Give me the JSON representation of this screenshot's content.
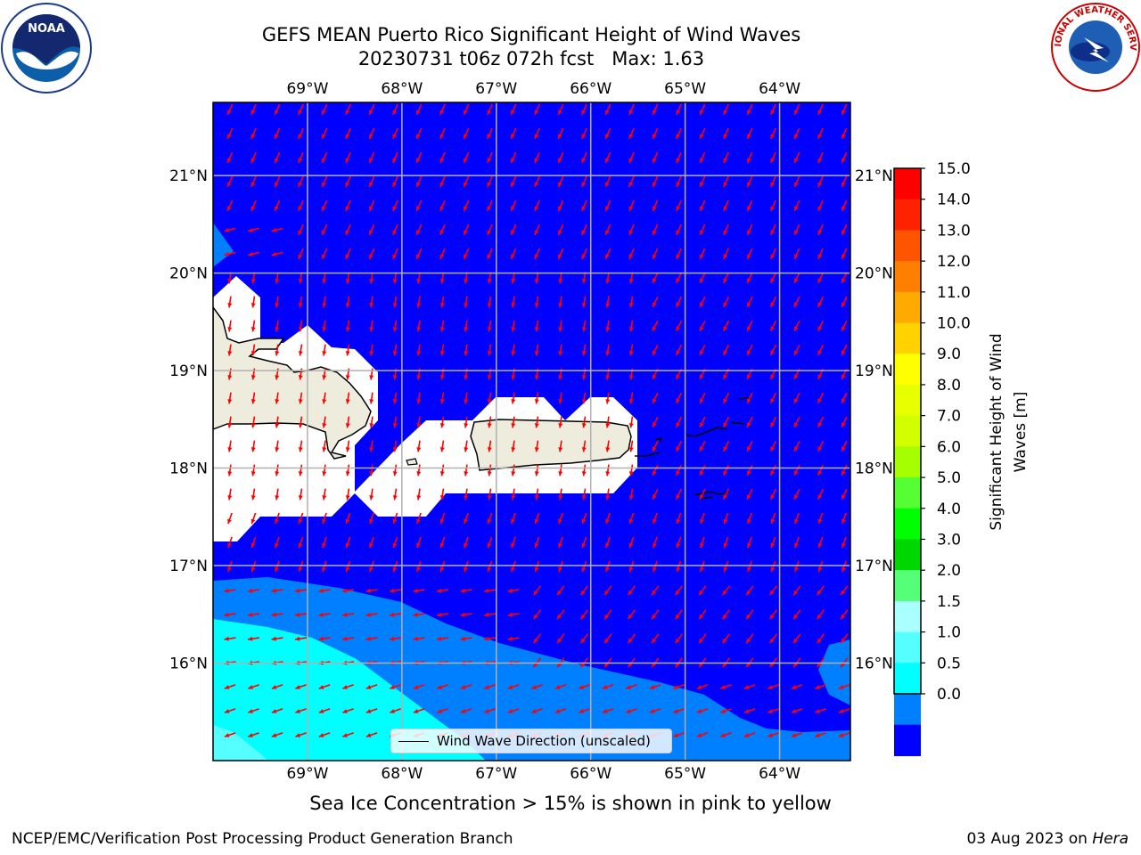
{
  "title": {
    "line1": "GEFS MEAN Puerto Rico Significant Height of Wind Waves",
    "line2": "20230731 t06z 072h fcst   Max: 1.63"
  },
  "logos": {
    "left": {
      "icon": "noaa-logo",
      "text": "NOAA"
    },
    "right": {
      "icon": "national-weather-service-logo",
      "text": "NATIONAL WEATHER SERVICE"
    }
  },
  "map": {
    "extent": {
      "lon_min": -70.0,
      "lon_max": -63.25,
      "lat_min": 15.0,
      "lat_max": 21.75
    },
    "lon_ticks": [
      "69°W",
      "68°W",
      "67°W",
      "66°W",
      "65°W",
      "64°W"
    ],
    "lon_values": [
      -69,
      -68,
      -67,
      -66,
      -65,
      -64
    ],
    "lat_ticks": [
      "21°N",
      "20°N",
      "19°N",
      "18°N",
      "17°N",
      "16°N"
    ],
    "lat_values": [
      21,
      20,
      19,
      18,
      17,
      16
    ],
    "ocean_color": "#0000ff",
    "land_color": "#eeecdc",
    "arrow_color": "#ff0000",
    "legend_label": "Wind Wave Direction (unscaled)"
  },
  "colorbar": {
    "label_line1": "Significant Height of Wind",
    "label_line2": "Waves [m]",
    "levels": [
      "15.0",
      "14.0",
      "13.0",
      "12.0",
      "11.0",
      "10.0",
      "9.0",
      "8.0",
      "7.0",
      "6.0",
      "5.0",
      "4.0",
      "3.0",
      "2.0",
      "1.5",
      "1.0",
      "0.5",
      "0.0"
    ],
    "colors": [
      "#ff0000",
      "#ff2200",
      "#ff5500",
      "#ff7f00",
      "#ffaa00",
      "#ffd200",
      "#ffff00",
      "#e8ff00",
      "#d2ff00",
      "#a6ff00",
      "#55ff33",
      "#00ff00",
      "#00d600",
      "#55ff77",
      "#aaffff",
      "#55ffff",
      "#00ffff",
      "#007fff",
      "#0000ff"
    ]
  },
  "subtitle": "Sea Ice Concentration > 15% is shown in pink to yellow",
  "footer": {
    "left": "NCEP/EMC/Verification Post Processing Product Generation Branch",
    "right_date": "03 Aug 2023 on ",
    "right_host": "Hera"
  }
}
